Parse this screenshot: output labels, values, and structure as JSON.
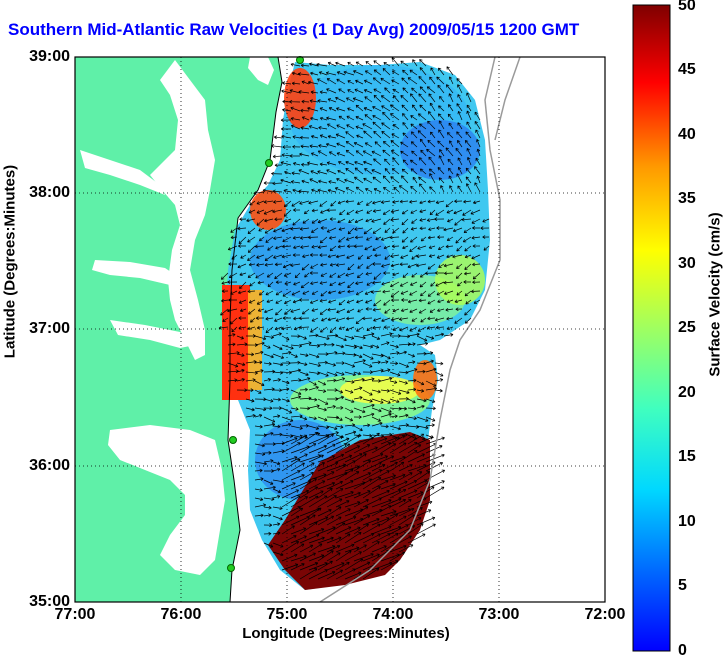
{
  "title": "Southern Mid-Atlantic Raw Velocities (1 Day Avg) 2009/05/15 1200 GMT",
  "axes": {
    "xlabel": "Longitude (Degrees:Minutes)",
    "ylabel": "Latitude (Degrees:Minutes)",
    "xticks": [
      "77:00",
      "76:00",
      "75:00",
      "74:00",
      "73:00",
      "72:00"
    ],
    "yticks": [
      "39:00",
      "38:00",
      "37:00",
      "36:00",
      "35:00"
    ]
  },
  "colorbar": {
    "label": "Surface Velocity (cm/s)",
    "ticks": [
      "50",
      "45",
      "40",
      "35",
      "30",
      "25",
      "20",
      "15",
      "10",
      "5",
      "0"
    ],
    "range": [
      0,
      50
    ]
  },
  "colors": {
    "title": "#0000ff",
    "land": "#5ff0a8",
    "bathymetry_line": "#9a9a9a",
    "station_marker": "#22cc22"
  },
  "map": {
    "lon_range": [
      -77,
      -72
    ],
    "lat_range": [
      35,
      39
    ],
    "grid": "dotted"
  }
}
